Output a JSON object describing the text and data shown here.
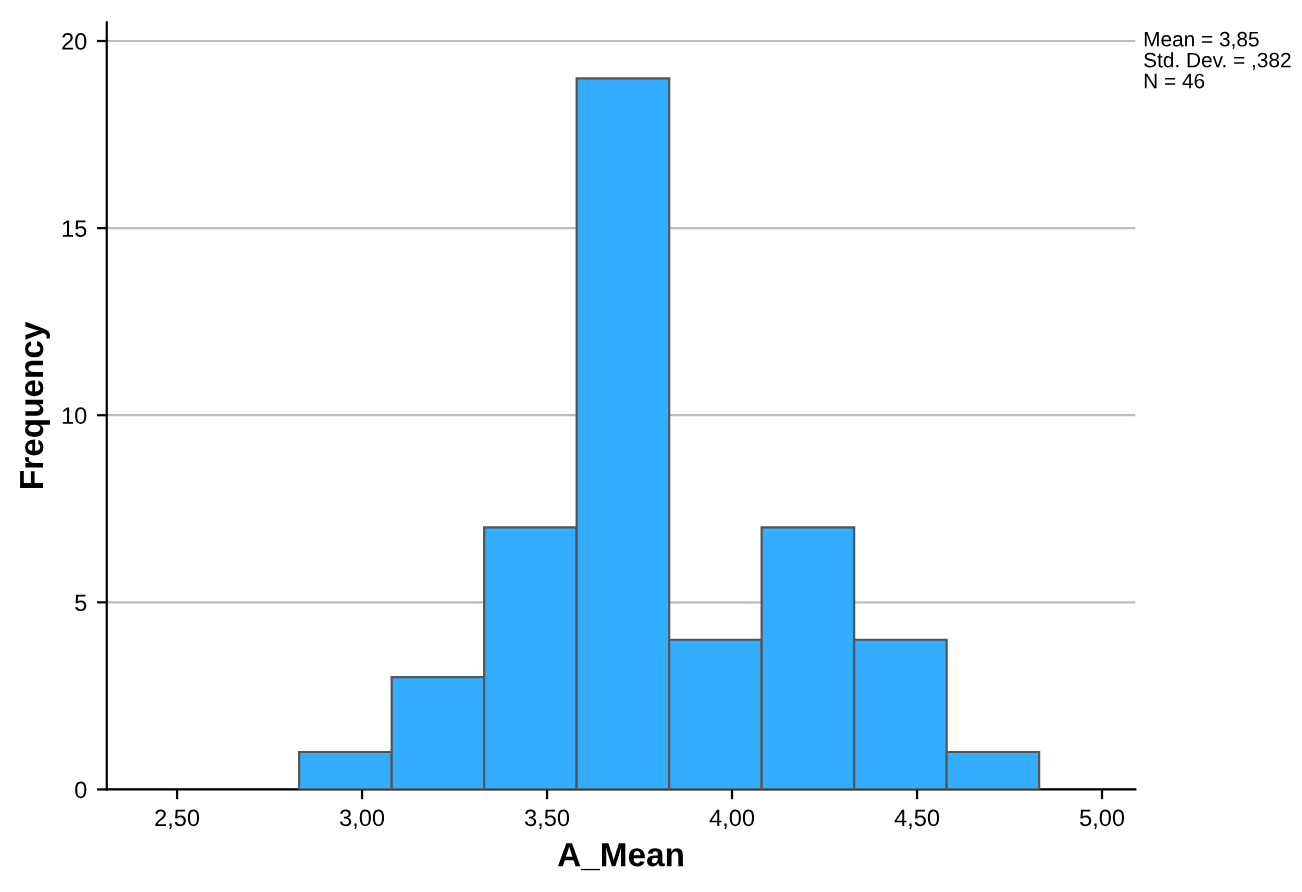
{
  "chart_data": {
    "type": "histogram",
    "xlabel": "A_Mean",
    "ylabel": "Frequency",
    "bins": [
      2.83,
      3.08,
      3.33,
      3.58,
      3.83,
      4.08,
      4.33,
      4.58,
      4.83
    ],
    "values": [
      1,
      3,
      7,
      19,
      4,
      7,
      4,
      1
    ],
    "color": "#33adff",
    "xlim": [
      2.31,
      5.09
    ],
    "ylim": [
      0,
      20.5
    ],
    "xticks": [
      {
        "value": 2.5,
        "label": "2,50"
      },
      {
        "value": 3.0,
        "label": "3,00"
      },
      {
        "value": 3.5,
        "label": "3,50"
      },
      {
        "value": 4.0,
        "label": "4,00"
      },
      {
        "value": 4.5,
        "label": "4,50"
      },
      {
        "value": 5.0,
        "label": "5,00"
      }
    ],
    "yticks": [
      0,
      5,
      10,
      15,
      20
    ],
    "grid": "y",
    "annotations": [
      "Mean = 3,85\nStd. Dev. = ,382\nN = 46"
    ]
  }
}
